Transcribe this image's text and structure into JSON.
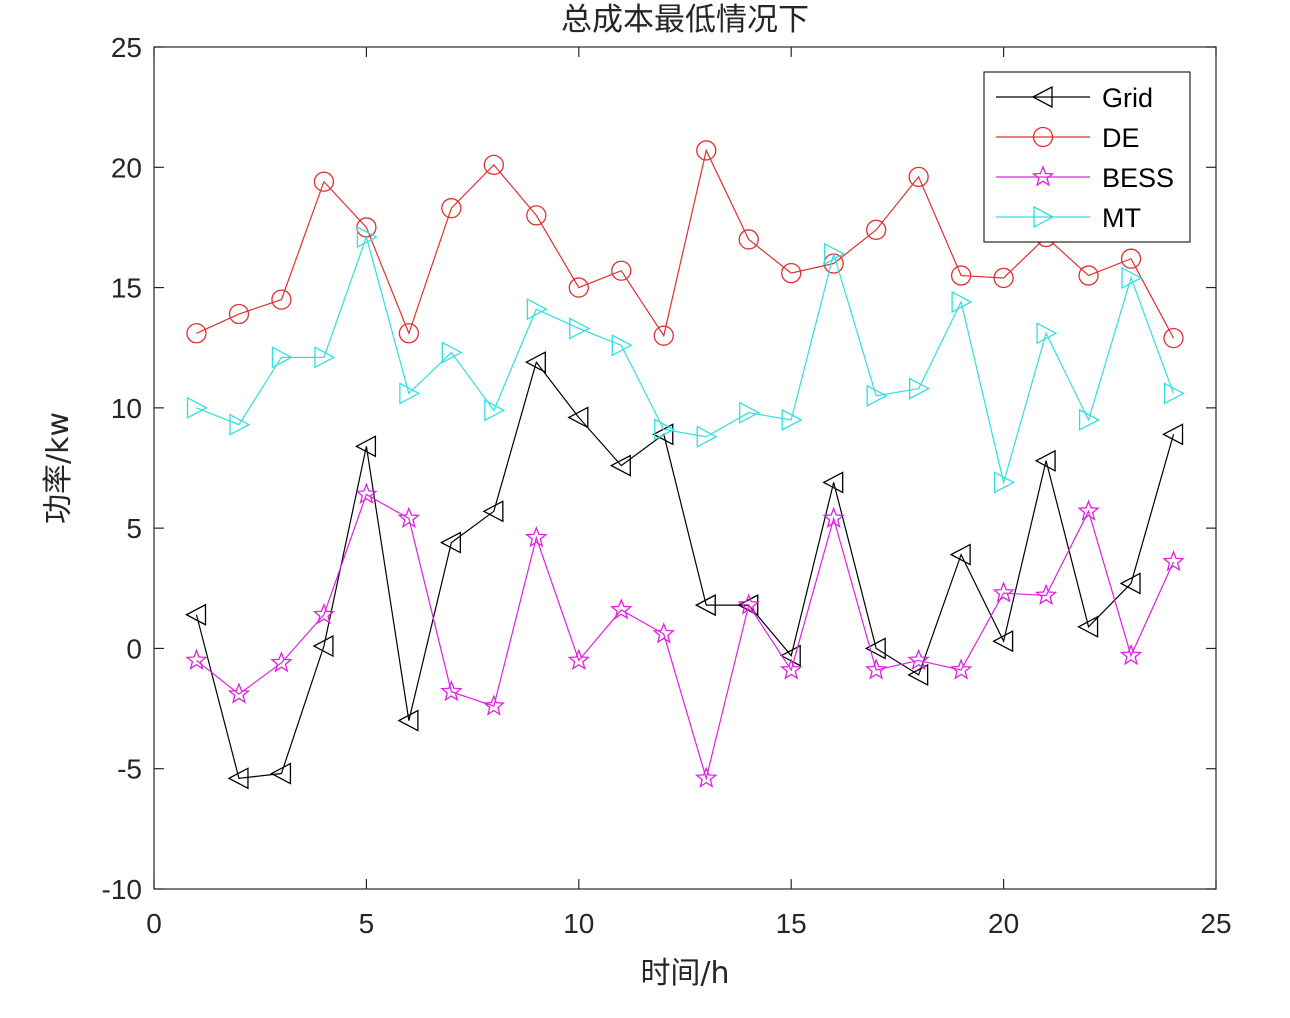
{
  "chart_data": {
    "type": "line",
    "title": "总成本最低情况下",
    "xlabel": "时间/h",
    "ylabel": "功率/kw",
    "xlim": [
      0,
      25
    ],
    "ylim": [
      -10,
      25
    ],
    "xticks": [
      "0",
      "5",
      "10",
      "15",
      "20",
      "25"
    ],
    "yticks": [
      "-10",
      "-5",
      "0",
      "5",
      "10",
      "15",
      "20",
      "25"
    ],
    "grid": false,
    "legend_position": "top-right",
    "x": [
      1,
      2,
      3,
      4,
      5,
      6,
      7,
      8,
      9,
      10,
      11,
      12,
      13,
      14,
      15,
      16,
      17,
      18,
      19,
      20,
      21,
      22,
      23,
      24
    ],
    "series": [
      {
        "name": "Grid",
        "color": "#000000",
        "marker": "triangle-left",
        "values": [
          1.4,
          -5.4,
          -5.2,
          0.1,
          8.4,
          -3.0,
          4.4,
          5.7,
          11.9,
          9.6,
          7.6,
          8.9,
          1.8,
          1.8,
          -0.3,
          6.9,
          0.0,
          -1.1,
          3.9,
          0.3,
          7.8,
          0.9,
          2.7,
          8.9
        ]
      },
      {
        "name": "DE",
        "color": "#e03030",
        "marker": "circle",
        "values": [
          13.1,
          13.9,
          14.5,
          19.4,
          17.5,
          13.1,
          18.3,
          20.1,
          18.0,
          15.0,
          15.7,
          13.0,
          20.7,
          17.0,
          15.6,
          16.0,
          17.4,
          19.6,
          15.5,
          15.4,
          17.1,
          15.5,
          16.2,
          12.9
        ]
      },
      {
        "name": "BESS",
        "color": "#e020e0",
        "marker": "star",
        "values": [
          -0.5,
          -1.9,
          -0.6,
          1.4,
          6.4,
          5.4,
          -1.8,
          -2.4,
          4.6,
          -0.5,
          1.6,
          0.6,
          -5.4,
          1.8,
          -0.9,
          5.4,
          -0.9,
          -0.5,
          -0.9,
          2.3,
          2.2,
          5.7,
          -0.3,
          3.6
        ]
      },
      {
        "name": "MT",
        "color": "#30e0e0",
        "marker": "triangle-right",
        "values": [
          10.0,
          9.3,
          12.1,
          12.1,
          17.1,
          10.6,
          12.3,
          9.9,
          14.1,
          13.3,
          12.6,
          9.1,
          8.8,
          9.8,
          9.5,
          16.4,
          10.5,
          10.8,
          14.4,
          6.9,
          13.1,
          9.5,
          15.4,
          10.6
        ]
      }
    ]
  }
}
